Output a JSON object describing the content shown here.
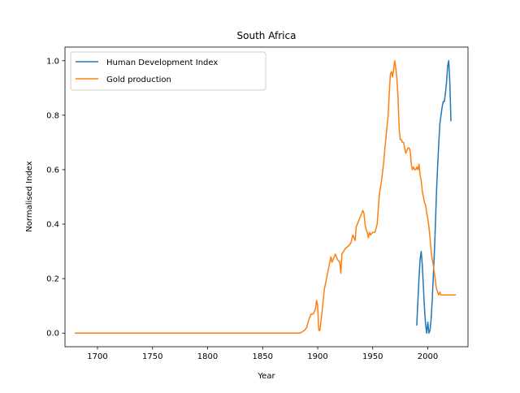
{
  "chart_data": {
    "type": "line",
    "title": "South Africa",
    "xlabel": "Year",
    "ylabel": "Normalised Index",
    "xlim": [
      1670.5,
      2036.5
    ],
    "ylim": [
      -0.05,
      1.05
    ],
    "xticks": [
      1700,
      1750,
      1800,
      1850,
      1900,
      1950,
      2000
    ],
    "yticks": [
      0.0,
      0.2,
      0.4,
      0.6,
      0.8,
      1.0
    ],
    "xtick_labels": [
      "1700",
      "1750",
      "1800",
      "1850",
      "1900",
      "1950",
      "2000"
    ],
    "ytick_labels": [
      "0.0",
      "0.2",
      "0.4",
      "0.6",
      "0.8",
      "1.0"
    ],
    "grid": false,
    "legend": "top-left",
    "series": [
      {
        "name": "Human Development Index",
        "color": "#1f77b4",
        "x": [
          1990,
          1991,
          1992,
          1993,
          1994,
          1995,
          1996,
          1997,
          1998,
          1999,
          2000,
          2001,
          2002,
          2003,
          2004,
          2005,
          2006,
          2007,
          2008,
          2009,
          2010,
          2011,
          2012,
          2013,
          2014,
          2015,
          2016,
          2017,
          2018,
          2019,
          2020,
          2021
        ],
        "y": [
          0.03,
          0.12,
          0.2,
          0.27,
          0.3,
          0.25,
          0.17,
          0.09,
          0.03,
          0.0,
          0.04,
          0.0,
          0.01,
          0.05,
          0.12,
          0.21,
          0.3,
          0.41,
          0.53,
          0.62,
          0.7,
          0.77,
          0.8,
          0.83,
          0.85,
          0.85,
          0.88,
          0.92,
          0.98,
          1.0,
          0.92,
          0.78
        ]
      },
      {
        "name": "Gold production",
        "color": "#ff7f0e",
        "x": [
          1680,
          1880,
          1884,
          1886,
          1888,
          1890,
          1892,
          1894,
          1896,
          1898,
          1899,
          1900,
          1901,
          1902,
          1904,
          1906,
          1908,
          1910,
          1912,
          1913,
          1914,
          1916,
          1918,
          1920,
          1921,
          1922,
          1925,
          1928,
          1930,
          1932,
          1934,
          1935,
          1936,
          1938,
          1940,
          1941,
          1942,
          1943,
          1944,
          1945,
          1946,
          1947,
          1948,
          1950,
          1952,
          1954,
          1956,
          1958,
          1960,
          1962,
          1964,
          1965,
          1966,
          1967,
          1968,
          1969,
          1970,
          1971,
          1972,
          1973,
          1974,
          1975,
          1976,
          1977,
          1978,
          1979,
          1980,
          1981,
          1982,
          1983,
          1984,
          1985,
          1986,
          1987,
          1988,
          1989,
          1990,
          1991,
          1992,
          1993,
          1994,
          1995,
          1996,
          1997,
          1998,
          1999,
          2000,
          2001,
          2002,
          2003,
          2004,
          2005,
          2006,
          2007,
          2008,
          2009,
          2010,
          2011,
          2012,
          2013,
          2014,
          2015,
          2016,
          2017,
          2018,
          2019,
          2020,
          2021,
          2022,
          2023,
          2024,
          2025
        ],
        "y": [
          0.0,
          0.0,
          0.0,
          0.005,
          0.01,
          0.02,
          0.05,
          0.07,
          0.07,
          0.09,
          0.12,
          0.1,
          0.01,
          0.01,
          0.08,
          0.16,
          0.2,
          0.24,
          0.28,
          0.26,
          0.27,
          0.29,
          0.27,
          0.26,
          0.22,
          0.29,
          0.31,
          0.32,
          0.33,
          0.36,
          0.34,
          0.39,
          0.4,
          0.42,
          0.44,
          0.45,
          0.44,
          0.4,
          0.38,
          0.37,
          0.35,
          0.37,
          0.36,
          0.37,
          0.37,
          0.4,
          0.51,
          0.56,
          0.63,
          0.72,
          0.8,
          0.88,
          0.95,
          0.96,
          0.94,
          0.97,
          1.0,
          0.97,
          0.93,
          0.86,
          0.75,
          0.71,
          0.71,
          0.7,
          0.7,
          0.68,
          0.66,
          0.67,
          0.68,
          0.68,
          0.67,
          0.62,
          0.6,
          0.61,
          0.6,
          0.6,
          0.61,
          0.6,
          0.62,
          0.58,
          0.56,
          0.52,
          0.5,
          0.48,
          0.47,
          0.44,
          0.42,
          0.39,
          0.35,
          0.3,
          0.27,
          0.25,
          0.22,
          0.19,
          0.16,
          0.15,
          0.14,
          0.15,
          0.14,
          0.14,
          0.14,
          0.14,
          0.14,
          0.14,
          0.14,
          0.14,
          0.14,
          0.14,
          0.14,
          0.14,
          0.14,
          0.14
        ]
      }
    ]
  }
}
